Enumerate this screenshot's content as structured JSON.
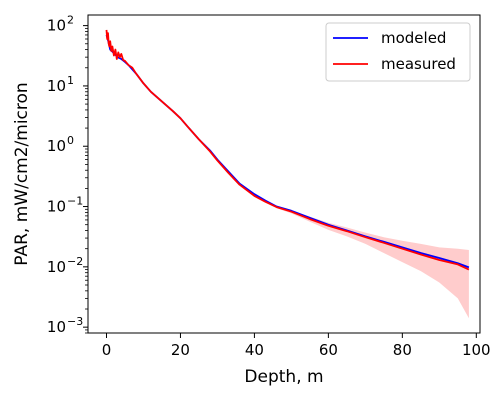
{
  "chart_data": {
    "type": "line",
    "title": "",
    "xlabel": "Depth, m",
    "ylabel": "PAR, mW/cm2/micron",
    "xlim": [
      -5,
      101
    ],
    "ylim": [
      0.0008,
      150
    ],
    "yscale": "log",
    "grid": false,
    "legend_position": "top-right",
    "x_ticks": [
      0,
      20,
      40,
      60,
      80,
      100
    ],
    "y_ticks": [
      {
        "base": "10",
        "exp": "2",
        "value": 100
      },
      {
        "base": "10",
        "exp": "1",
        "value": 10
      },
      {
        "base": "10",
        "exp": "0",
        "value": 1
      },
      {
        "base": "10",
        "exp": "−1",
        "value": 0.1
      },
      {
        "base": "10",
        "exp": "−2",
        "value": 0.01
      },
      {
        "base": "10",
        "exp": "−3",
        "value": 0.001
      }
    ],
    "series": [
      {
        "name": "modeled",
        "color": "#0000ff",
        "x": [
          0,
          0.5,
          1,
          2,
          3,
          4,
          5,
          6,
          8,
          10,
          12,
          15,
          18,
          20,
          22,
          25,
          28,
          30,
          33,
          36,
          40,
          43,
          46,
          50,
          55,
          60,
          65,
          70,
          75,
          80,
          85,
          90,
          95,
          98
        ],
        "y": [
          70,
          55,
          40,
          35,
          30,
          28,
          25,
          22,
          16,
          11,
          8,
          5.5,
          3.8,
          2.9,
          2.1,
          1.3,
          0.85,
          0.6,
          0.38,
          0.24,
          0.16,
          0.125,
          0.1,
          0.085,
          0.065,
          0.05,
          0.04,
          0.032,
          0.026,
          0.021,
          0.017,
          0.014,
          0.0115,
          0.0098
        ]
      },
      {
        "name": "measured",
        "color": "#ff0000",
        "x": [
          0,
          0.2,
          0.4,
          0.6,
          0.8,
          1,
          1.3,
          1.6,
          2,
          2.4,
          2.8,
          3.2,
          3.6,
          4,
          4.5,
          5,
          6,
          7,
          8,
          10,
          12,
          15,
          18,
          20,
          22,
          25,
          28,
          30,
          33,
          36,
          40,
          43,
          46,
          50,
          55,
          60,
          65,
          70,
          75,
          80,
          85,
          90,
          95,
          98
        ],
        "y": [
          85,
          60,
          75,
          50,
          45,
          55,
          38,
          45,
          32,
          40,
          28,
          36,
          30,
          34,
          27,
          26,
          22,
          20,
          16,
          11,
          8,
          5.5,
          3.8,
          2.9,
          2.1,
          1.3,
          0.82,
          0.58,
          0.36,
          0.23,
          0.15,
          0.12,
          0.098,
          0.082,
          0.062,
          0.048,
          0.039,
          0.031,
          0.025,
          0.02,
          0.016,
          0.013,
          0.011,
          0.009
        ]
      }
    ],
    "band": {
      "color": "#ffcccc",
      "x": [
        40,
        43,
        46,
        50,
        55,
        60,
        65,
        70,
        75,
        80,
        85,
        90,
        95,
        98
      ],
      "upper": [
        0.16,
        0.125,
        0.102,
        0.087,
        0.068,
        0.054,
        0.045,
        0.037,
        0.031,
        0.027,
        0.024,
        0.021,
        0.02,
        0.019
      ],
      "lower": [
        0.15,
        0.118,
        0.094,
        0.077,
        0.056,
        0.041,
        0.032,
        0.024,
        0.017,
        0.012,
        0.0085,
        0.0055,
        0.003,
        0.0014
      ]
    }
  }
}
